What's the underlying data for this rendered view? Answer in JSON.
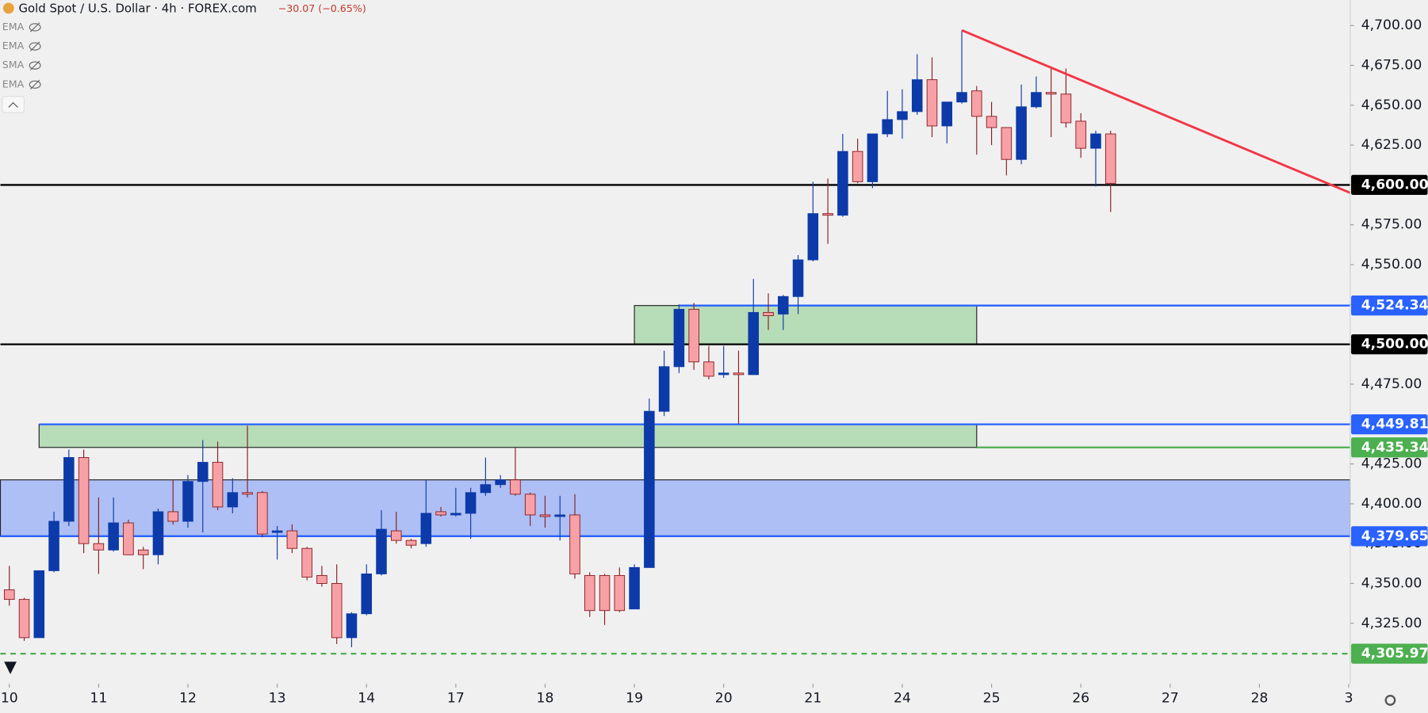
{
  "chart_data": {
    "type": "candlestick",
    "title": "Gold Spot / U.S. Dollar · 4h · FOREX.com",
    "change": "−30.07 (−0.65%)",
    "indicators": [
      "EMA",
      "EMA",
      "SMA",
      "EMA"
    ],
    "up_color": "#0d3aa9",
    "down_color": "#f7a1a6",
    "down_border": "#8a1c22",
    "xlim": [
      -0.6,
      90.1
    ],
    "ylim": [
      4287,
      4716
    ],
    "xticks": [
      {
        "value": 0,
        "label": "10"
      },
      {
        "value": 6,
        "label": "11"
      },
      {
        "value": 12,
        "label": "12"
      },
      {
        "value": 18,
        "label": "13"
      },
      {
        "value": 24,
        "label": "14"
      },
      {
        "value": 30,
        "label": "17"
      },
      {
        "value": 36,
        "label": "18"
      },
      {
        "value": 42,
        "label": "19"
      },
      {
        "value": 48,
        "label": "20"
      },
      {
        "value": 54,
        "label": "21"
      },
      {
        "value": 60,
        "label": "24"
      },
      {
        "value": 66,
        "label": "25"
      },
      {
        "value": 72,
        "label": "26"
      },
      {
        "value": 78,
        "label": "27"
      },
      {
        "value": 84,
        "label": "28"
      },
      {
        "value": 90,
        "label": "3"
      }
    ],
    "yticks": [
      {
        "value": 4325,
        "label": "4,325.00"
      },
      {
        "value": 4350,
        "label": "4,350.00"
      },
      {
        "value": 4375,
        "label": "4,375.00"
      },
      {
        "value": 4400,
        "label": "4,400.00"
      },
      {
        "value": 4425,
        "label": "4,425.00"
      },
      {
        "value": 4450,
        "label": "4,450.00"
      },
      {
        "value": 4475,
        "label": "4,475.00"
      },
      {
        "value": 4500,
        "label": "4,500.00"
      },
      {
        "value": 4525,
        "label": "4,525.00"
      },
      {
        "value": 4550,
        "label": "4,550.00"
      },
      {
        "value": 4575,
        "label": "4,575.00"
      },
      {
        "value": 4600,
        "label": "4,600.00"
      },
      {
        "value": 4625,
        "label": "4,625.00"
      },
      {
        "value": 4650,
        "label": "4,650.00"
      },
      {
        "value": 4675,
        "label": "4,675.00"
      },
      {
        "value": 4700,
        "label": "4,700.00"
      }
    ],
    "candles": [
      {
        "open": 4346,
        "high": 4361,
        "low": 4336,
        "close": 4340
      },
      {
        "open": 4340,
        "high": 4341,
        "low": 4314,
        "close": 4316
      },
      {
        "open": 4316,
        "high": 4358,
        "low": 4316,
        "close": 4358
      },
      {
        "open": 4358,
        "high": 4395,
        "low": 4357,
        "close": 4389
      },
      {
        "open": 4389,
        "high": 4434,
        "low": 4386,
        "close": 4429
      },
      {
        "open": 4429,
        "high": 4434,
        "low": 4369,
        "close": 4375
      },
      {
        "open": 4375,
        "high": 4404,
        "low": 4356,
        "close": 4371
      },
      {
        "open": 4371,
        "high": 4404,
        "low": 4370,
        "close": 4388
      },
      {
        "open": 4388,
        "high": 4390,
        "low": 4368,
        "close": 4368
      },
      {
        "open": 4371,
        "high": 4373,
        "low": 4359,
        "close": 4368
      },
      {
        "open": 4368,
        "high": 4397,
        "low": 4362,
        "close": 4395
      },
      {
        "open": 4395,
        "high": 4415,
        "low": 4387,
        "close": 4389
      },
      {
        "open": 4389,
        "high": 4418,
        "low": 4385,
        "close": 4414
      },
      {
        "open": 4414,
        "high": 4440,
        "low": 4382,
        "close": 4426
      },
      {
        "open": 4426,
        "high": 4439,
        "low": 4396,
        "close": 4398
      },
      {
        "open": 4398,
        "high": 4416,
        "low": 4394,
        "close": 4407
      },
      {
        "open": 4407,
        "high": 4449,
        "low": 4404,
        "close": 4406
      },
      {
        "open": 4407,
        "high": 4408,
        "low": 4379,
        "close": 4381
      },
      {
        "open": 4382,
        "high": 4386,
        "low": 4365,
        "close": 4383
      },
      {
        "open": 4383,
        "high": 4387,
        "low": 4369,
        "close": 4372
      },
      {
        "open": 4372,
        "high": 4373,
        "low": 4352,
        "close": 4354
      },
      {
        "open": 4355,
        "high": 4361,
        "low": 4348,
        "close": 4350
      },
      {
        "open": 4350,
        "high": 4362,
        "low": 4312,
        "close": 4316
      },
      {
        "open": 4316,
        "high": 4332,
        "low": 4310,
        "close": 4331
      },
      {
        "open": 4331,
        "high": 4362,
        "low": 4330,
        "close": 4356
      },
      {
        "open": 4356,
        "high": 4396,
        "low": 4355,
        "close": 4384
      },
      {
        "open": 4383,
        "high": 4395,
        "low": 4375,
        "close": 4377
      },
      {
        "open": 4377,
        "high": 4378,
        "low": 4372,
        "close": 4374
      },
      {
        "open": 4375,
        "high": 4415,
        "low": 4373,
        "close": 4394
      },
      {
        "open": 4395,
        "high": 4398,
        "low": 4392,
        "close": 4393
      },
      {
        "open": 4393,
        "high": 4410,
        "low": 4392,
        "close": 4394
      },
      {
        "open": 4394,
        "high": 4410,
        "low": 4378,
        "close": 4407
      },
      {
        "open": 4407,
        "high": 4429,
        "low": 4405,
        "close": 4412
      },
      {
        "open": 4412,
        "high": 4418,
        "low": 4410,
        "close": 4415
      },
      {
        "open": 4415,
        "high": 4435,
        "low": 4405,
        "close": 4406
      },
      {
        "open": 4406,
        "high": 4407,
        "low": 4386,
        "close": 4393
      },
      {
        "open": 4393,
        "high": 4405,
        "low": 4385,
        "close": 4392
      },
      {
        "open": 4392,
        "high": 4405,
        "low": 4377,
        "close": 4393
      },
      {
        "open": 4393,
        "high": 4406,
        "low": 4353,
        "close": 4356
      },
      {
        "open": 4355,
        "high": 4357,
        "low": 4329,
        "close": 4333
      },
      {
        "open": 4355,
        "high": 4356,
        "low": 4324,
        "close": 4333
      },
      {
        "open": 4355,
        "high": 4360,
        "low": 4332,
        "close": 4333
      },
      {
        "open": 4334,
        "high": 4362,
        "low": 4334,
        "close": 4360
      },
      {
        "open": 4360,
        "high": 4466,
        "low": 4360,
        "close": 4458
      },
      {
        "open": 4458,
        "high": 4496,
        "low": 4455,
        "close": 4486
      },
      {
        "open": 4486,
        "high": 4525,
        "low": 4482,
        "close": 4522
      },
      {
        "open": 4522,
        "high": 4526,
        "low": 4484,
        "close": 4489
      },
      {
        "open": 4489,
        "high": 4499,
        "low": 4478,
        "close": 4480
      },
      {
        "open": 4481,
        "high": 4499,
        "low": 4479,
        "close": 4482
      },
      {
        "open": 4482,
        "high": 4496,
        "low": 4450,
        "close": 4481
      },
      {
        "open": 4481,
        "high": 4541,
        "low": 4481,
        "close": 4520
      },
      {
        "open": 4520,
        "high": 4532,
        "low": 4509,
        "close": 4518
      },
      {
        "open": 4519,
        "high": 4531,
        "low": 4509,
        "close": 4530
      },
      {
        "open": 4530,
        "high": 4556,
        "low": 4519,
        "close": 4553
      },
      {
        "open": 4553,
        "high": 4602,
        "low": 4552,
        "close": 4582
      },
      {
        "open": 4582,
        "high": 4604,
        "low": 4563,
        "close": 4581
      },
      {
        "open": 4581,
        "high": 4632,
        "low": 4580,
        "close": 4621
      },
      {
        "open": 4621,
        "high": 4629,
        "low": 4601,
        "close": 4602
      },
      {
        "open": 4602,
        "high": 4632,
        "low": 4598,
        "close": 4632
      },
      {
        "open": 4632,
        "high": 4659,
        "low": 4630,
        "close": 4641
      },
      {
        "open": 4641,
        "high": 4660,
        "low": 4629,
        "close": 4646
      },
      {
        "open": 4646,
        "high": 4682,
        "low": 4644,
        "close": 4666
      },
      {
        "open": 4666,
        "high": 4680,
        "low": 4630,
        "close": 4637
      },
      {
        "open": 4637,
        "high": 4652,
        "low": 4626,
        "close": 4652
      },
      {
        "open": 4652,
        "high": 4697,
        "low": 4651,
        "close": 4658
      },
      {
        "open": 4659,
        "high": 4662,
        "low": 4619,
        "close": 4643
      },
      {
        "open": 4643,
        "high": 4652,
        "low": 4625,
        "close": 4636
      },
      {
        "open": 4636,
        "high": 4636,
        "low": 4606,
        "close": 4616
      },
      {
        "open": 4616,
        "high": 4663,
        "low": 4613,
        "close": 4649
      },
      {
        "open": 4649,
        "high": 4668,
        "low": 4648,
        "close": 4658
      },
      {
        "open": 4658,
        "high": 4673,
        "low": 4630,
        "close": 4657
      },
      {
        "open": 4657,
        "high": 4673,
        "low": 4636,
        "close": 4639
      },
      {
        "open": 4640,
        "high": 4645,
        "low": 4617,
        "close": 4623
      },
      {
        "open": 4623,
        "high": 4634,
        "low": 4599,
        "close": 4632
      },
      {
        "open": 4632,
        "high": 4634,
        "low": 4583,
        "close": 4601
      }
    ],
    "zones": [
      {
        "x": [
          -0.6,
          90.1
        ],
        "y": [
          4379.65,
          4415
        ],
        "color": "#adbff5"
      },
      {
        "x": [
          2,
          65
        ],
        "y": [
          4435.34,
          4449.81
        ],
        "color": "#b7dcb8"
      },
      {
        "x": [
          42,
          65
        ],
        "y": [
          4500,
          4524.34
        ],
        "color": "#b7dcb8"
      }
    ],
    "levels": [
      {
        "value": 4600,
        "label": "4,600.00",
        "color": "#000000",
        "from": -0.6
      },
      {
        "value": 4524.34,
        "label": "4,524.34",
        "color": "#2962ff",
        "from": 45
      },
      {
        "value": 4500,
        "label": "4,500.00",
        "color": "#000000",
        "from": -0.6
      },
      {
        "value": 4449.81,
        "label": "4,449.81",
        "color": "#2962ff",
        "from": 2
      },
      {
        "value": 4435.34,
        "label": "4,435.34",
        "color": "#4caf50",
        "from": 65
      },
      {
        "value": 4379.65,
        "label": "4,379.65",
        "color": "#2962ff",
        "from": -0.6
      },
      {
        "value": 4305.97,
        "label": "4,305.97",
        "color": "#4caf50",
        "from": -0.6,
        "dashed": true
      }
    ],
    "trendline": {
      "x": [
        64,
        90.1
      ],
      "y": [
        4697,
        4595
      ],
      "color": "#f23645"
    }
  }
}
